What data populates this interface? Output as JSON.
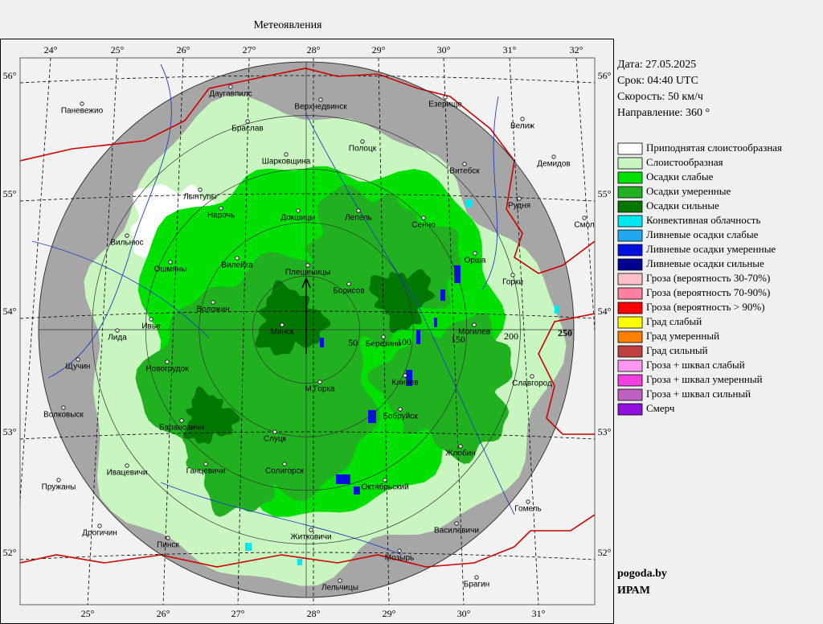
{
  "title": "Метеоявления",
  "info": [
    "Дата: 27.05.2025",
    "Срок: 04:40 UTC",
    "Скорость: 50  км/ч",
    "Направление: 360 °"
  ],
  "legend": [
    {
      "label": "Приподнятая слоистообразная",
      "color": "#ffffff"
    },
    {
      "label": "Слоистообразная",
      "color": "#c8f5c0"
    },
    {
      "label": "Осадки слабые",
      "color": "#00e000"
    },
    {
      "label": "Осадки умеренные",
      "color": "#20b020"
    },
    {
      "label": "Осадки сильные",
      "color": "#007800"
    },
    {
      "label": "Конвективная облачность",
      "color": "#00e8f0"
    },
    {
      "label": "Ливневые осадки слабые",
      "color": "#20a8f0"
    },
    {
      "label": "Ливневые осадки умеренные",
      "color": "#0010e0"
    },
    {
      "label": "Ливневые осадки сильные",
      "color": "#000090"
    },
    {
      "label": "Гроза (вероятность 30-70%)",
      "color": "#ffc0c8"
    },
    {
      "label": "Гроза (вероятность 70-90%)",
      "color": "#ff80a0"
    },
    {
      "label": "Гроза (вероятность > 90%)",
      "color": "#ff0000"
    },
    {
      "label": "Град слабый",
      "color": "#ffff00"
    },
    {
      "label": "Град умеренный",
      "color": "#ff8000"
    },
    {
      "label": "Град сильный",
      "color": "#c04040"
    },
    {
      "label": "Гроза + шквал слабый",
      "color": "#ff98f0"
    },
    {
      "label": "Гроза + шквал умеренный",
      "color": "#f040e0"
    },
    {
      "label": "Гроза + шквал сильный",
      "color": "#c060c0"
    },
    {
      "label": "Смерч",
      "color": "#9010e0"
    }
  ],
  "map": {
    "lon_top": [
      "24°",
      "25°",
      "26°",
      "27°",
      "28°",
      "29°",
      "30°",
      "31°",
      "32°"
    ],
    "lon_bottom": [
      "25°",
      "26°",
      "27°",
      "28°",
      "29°",
      "30°",
      "31°"
    ],
    "lat_left": [
      "56°",
      "55°",
      "54°",
      "53°",
      "52°"
    ],
    "lat_right": [
      "56°",
      "55°",
      "54°",
      "53°",
      "52°"
    ],
    "range_labels": [
      "50",
      "100",
      "150",
      "200",
      "250"
    ],
    "cities": [
      "Даугавпилс",
      "Верхнедвинск",
      "Езерище",
      "Паневежио",
      "Браслав",
      "Велиж",
      "Полоцк",
      "Шарковщина",
      "Витебск",
      "Демидов",
      "Лынтупы",
      "Нарочь",
      "Докшицы",
      "Лепель",
      "Сенно",
      "Рудня",
      "Смол",
      "Вильнюс",
      "Вилейка",
      "Ошмяны",
      "Плещеницы",
      "Орша",
      "Борисов",
      "Горки",
      "Воложин",
      "Ивье",
      "Лида",
      "Минск",
      "Березино",
      "Могилев",
      "Щучин",
      "Новогрудок",
      "М.Горка",
      "Кличев",
      "Славгород",
      "Волковыск",
      "Бобруйск",
      "Барановичи",
      "Слуцк",
      "Жлобин",
      "Ганцевичи",
      "Ивацевичи",
      "Солигорск",
      "Октябрьский",
      "Пружаны",
      "Гомель",
      "Дрогичин",
      "Пинск",
      "Житковичи",
      "Василевичи",
      "Мозырь",
      "Лельчицы",
      "Брагин"
    ]
  },
  "footer": [
    "pogoda.by",
    "ИРАМ"
  ]
}
